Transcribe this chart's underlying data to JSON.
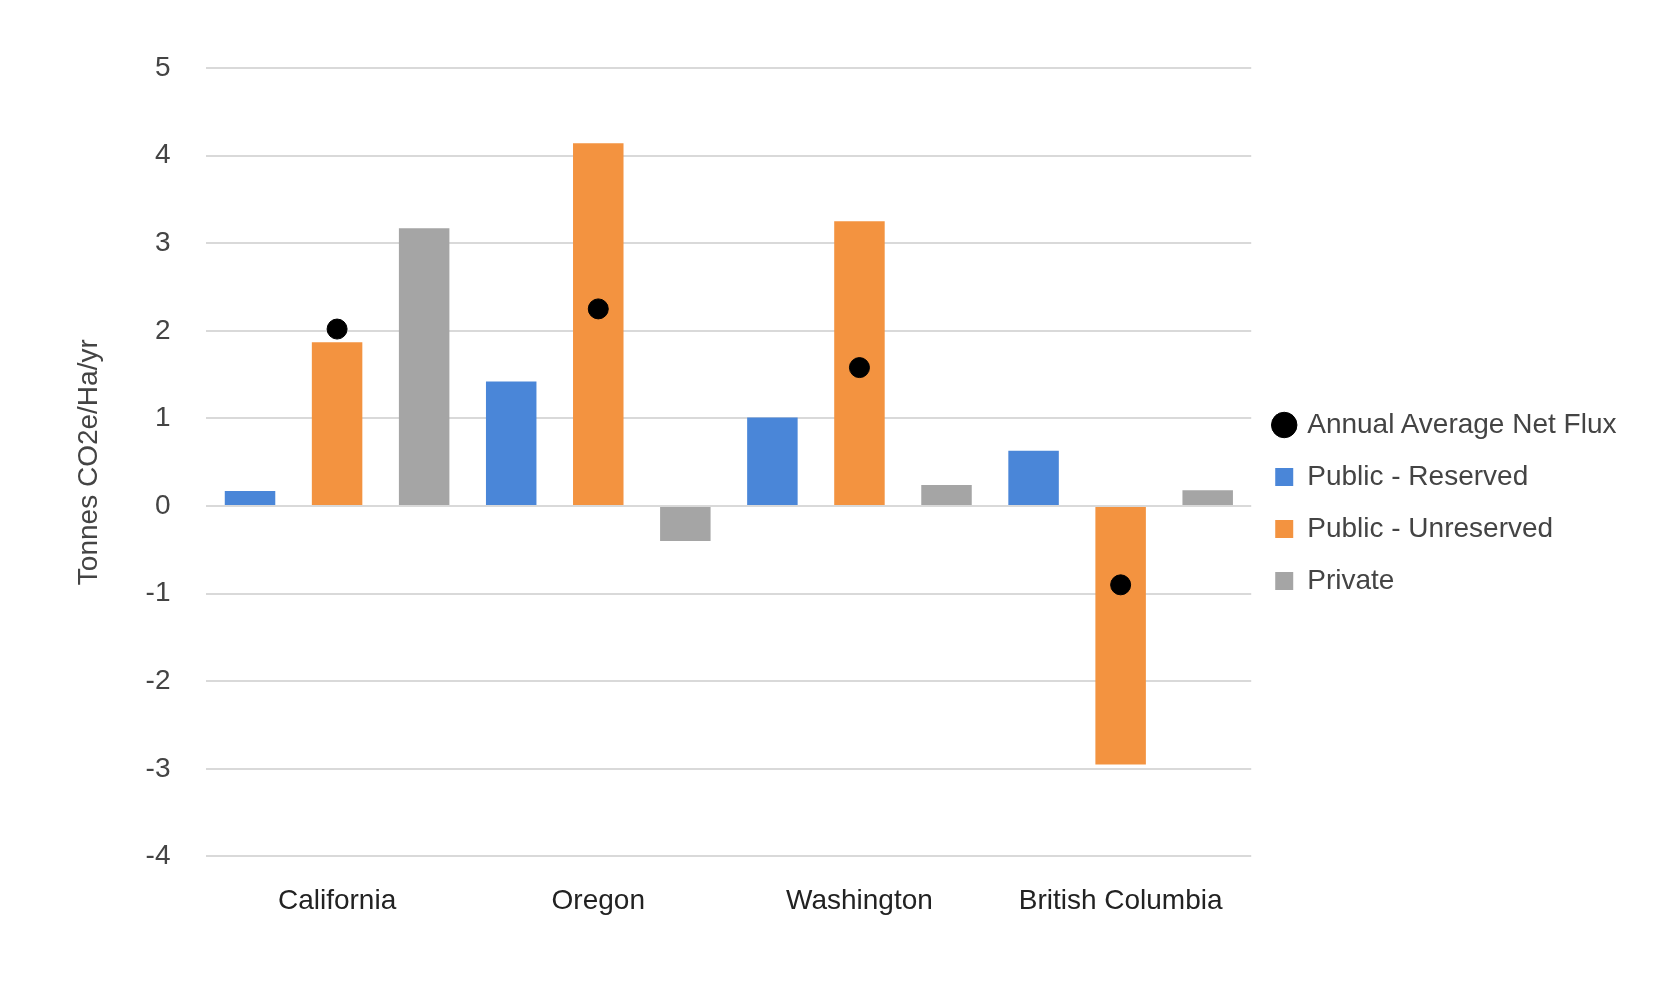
{
  "chart_data": {
    "type": "bar",
    "ylabel": "Tonnes CO2e/Ha/yr",
    "categories": [
      "California",
      "Oregon",
      "Washington",
      "British Columbia"
    ],
    "series": [
      {
        "name": "Public - Reserved",
        "color": "#4a86d8",
        "values": [
          0.17,
          1.42,
          1.01,
          0.63
        ]
      },
      {
        "name": "Public - Unreserved",
        "color": "#f39340",
        "values": [
          1.87,
          4.14,
          3.25,
          -2.95
        ]
      },
      {
        "name": "Private",
        "color": "#a5a5a5",
        "values": [
          3.17,
          -0.4,
          0.24,
          0.18
        ]
      },
      {
        "name": "Annual Average Net Flux",
        "type": "scatter",
        "marker": "circle",
        "color": "#000000",
        "x": [
          "California",
          "Oregon",
          "Washington",
          "British Columbia"
        ],
        "values": [
          2.02,
          2.25,
          1.58,
          -0.9
        ]
      }
    ],
    "ylim": [
      -4,
      5
    ],
    "yticks": [
      -4,
      -3,
      -2,
      -1,
      0,
      1,
      2,
      3,
      4,
      5
    ],
    "grid": "y",
    "legend": "right"
  }
}
